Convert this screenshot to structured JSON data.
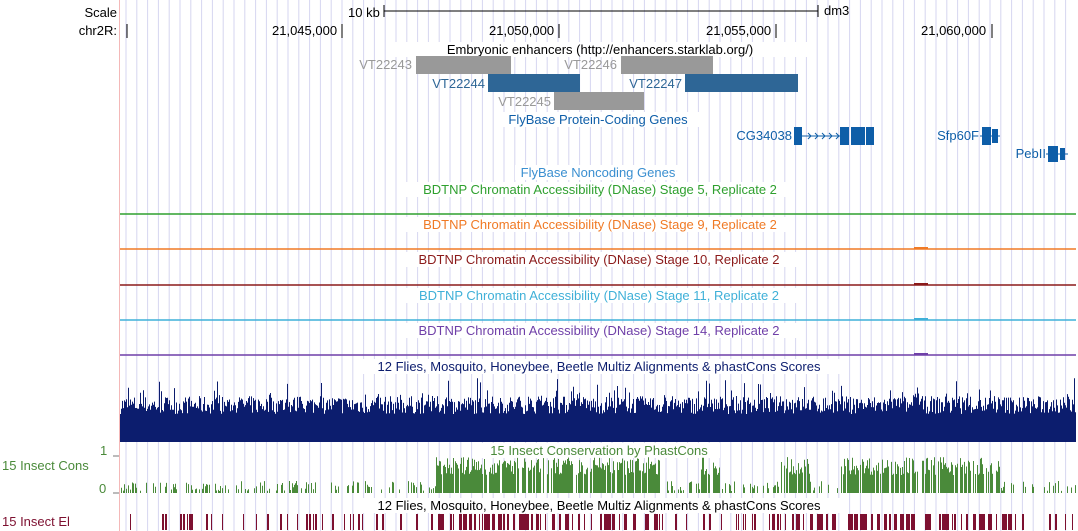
{
  "browser": {
    "assembly": "dm3",
    "chromosome_label": "chr2R:",
    "scale_label": "Scale",
    "scale_bar_text": "10 kb",
    "positions": [
      "21,045,000",
      "21,050,000",
      "21,055,000",
      "21,060,000"
    ]
  },
  "tracks": {
    "enhancers": {
      "title": "Embryonic enhancers (http://enhancers.starklab.org/)",
      "features": [
        {
          "name": "VT22243",
          "color": "#999999"
        },
        {
          "name": "VT22244",
          "color": "#2e6696"
        },
        {
          "name": "VT22245",
          "color": "#999999"
        },
        {
          "name": "VT22246",
          "color": "#999999"
        },
        {
          "name": "VT22247",
          "color": "#2e6696"
        }
      ]
    },
    "genes": {
      "title": "FlyBase Protein-Coding Genes",
      "features": [
        {
          "name": "CG34038",
          "color": "#0e5ea8"
        },
        {
          "name": "Sfp60F",
          "color": "#0e5ea8"
        },
        {
          "name": "PebII",
          "color": "#0e5ea8"
        }
      ]
    },
    "noncoding": {
      "title": "FlyBase Noncoding Genes",
      "color": "#3a8fd0"
    },
    "dnase": [
      {
        "title": "BDTNP Chromatin Accessibility (DNase) Stage 5, Replicate 2",
        "color": "#2fa02f"
      },
      {
        "title": "BDTNP Chromatin Accessibility (DNase) Stage 9, Replicate 2",
        "color": "#f07a25"
      },
      {
        "title": "BDTNP Chromatin Accessibility (DNase) Stage 10, Replicate 2",
        "color": "#8b1a1a"
      },
      {
        "title": "BDTNP Chromatin Accessibility (DNase) Stage 11, Replicate 2",
        "color": "#3fb0d8"
      },
      {
        "title": "BDTNP Chromatin Accessibility (DNase) Stage 14, Replicate 2",
        "color": "#6f3fa8"
      }
    ],
    "multiz": {
      "title": "12 Flies, Mosquito, Honeybee, Beetle Multiz Alignments & phastCons Scores",
      "color": "#0c1d6e"
    },
    "phastcons": {
      "title": "15 Insect Conservation by PhastCons",
      "side_label": "15 Insect Cons",
      "y_max": "1",
      "y_min": "0",
      "color": "#4a8a3a"
    },
    "elements": {
      "title": "12 Flies, Mosquito, Honeybee, Beetle Multiz Alignments & phastCons Scores",
      "side_label": "15 Insect El",
      "color": "#7d1030"
    }
  }
}
